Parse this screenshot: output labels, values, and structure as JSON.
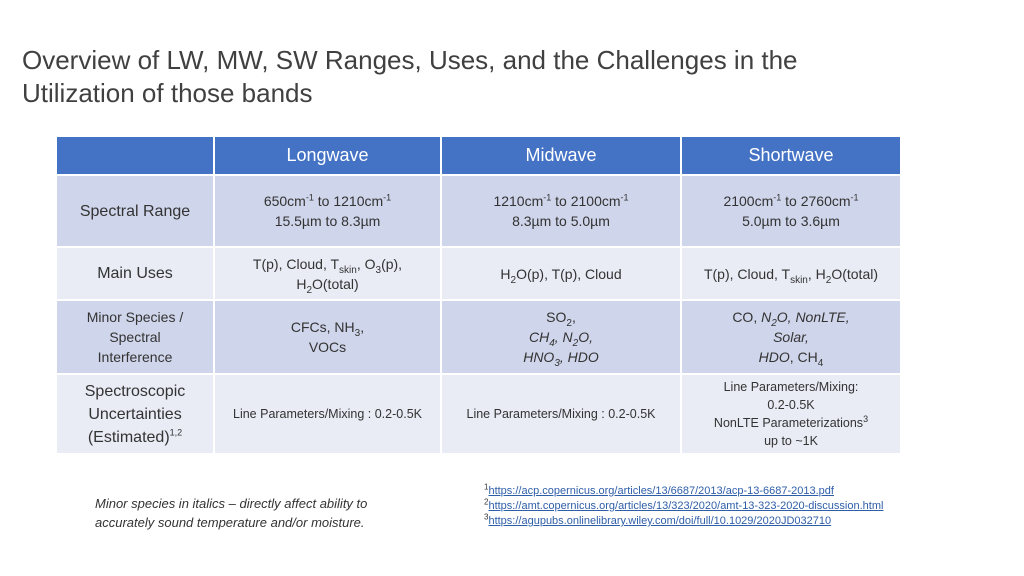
{
  "title": "Overview of LW, MW, SW Ranges, Uses, and the Challenges in the Utilization of those bands",
  "table": {
    "headers": [
      "",
      "Longwave",
      "Midwave",
      "Shortwave"
    ],
    "rows": {
      "spectral_range": {
        "label": "Spectral Range",
        "lw": {
          "a_pre": "650cm",
          "a_sup": "-1",
          "a_mid": " to 1210cm",
          "a_sup2": "-1",
          "b": "15.5µm to 8.3µm"
        },
        "mw": {
          "a_pre": "1210cm",
          "a_sup": "-1",
          "a_mid": " to 2100cm",
          "a_sup2": "-1",
          "b": "8.3µm to 5.0µm"
        },
        "sw": {
          "a_pre": "2100cm",
          "a_sup": "-1",
          "a_mid": " to 2760cm",
          "a_sup2": "-1",
          "b": "5.0µm to 3.6µm"
        }
      },
      "main_uses": {
        "label": "Main Uses",
        "lw": {
          "t1": "T(p), Cloud, T",
          "sub1": "skin",
          "t2": ", O",
          "sub2": "3",
          "t3": "(p),",
          "t4": "H",
          "sub3": "2",
          "t5": "O(total)"
        },
        "mw": {
          "t1": "H",
          "sub1": "2",
          "t2": "O(p), T(p), Cloud"
        },
        "sw": {
          "t1": "T(p), Cloud, T",
          "sub1": "skin",
          "t2": ", H",
          "sub2": "2",
          "t3": "O(total)"
        }
      },
      "minor_species": {
        "label1": "Minor Species /",
        "label2": "Spectral",
        "label3": "Interference",
        "lw": {
          "t1": "CFCs, NH",
          "sub1": "3",
          "t2": ",",
          "t3": "VOCs"
        },
        "mw": {
          "t1": "SO",
          "sub1": "2",
          "t2": ",",
          "t3": "CH",
          "sub2": "4",
          "t4": ", N",
          "sub3": "2",
          "t5": "O,",
          "t6": "HNO",
          "sub4": "3",
          "t7": ", HDO"
        },
        "sw": {
          "t1": "CO, ",
          "t2": "N",
          "sub1": "2",
          "t3": "O, NonLTE,",
          "t4": "Solar,",
          "t5": "HDO",
          "t6": ", CH",
          "sub2": "4"
        }
      },
      "uncertainties": {
        "label1": "Spectroscopic",
        "label2": "Uncertainties",
        "label3": "(Estimated)",
        "label_sup": "1,2",
        "lw": "Line Parameters/Mixing : 0.2-0.5K",
        "mw": "Line Parameters/Mixing : 0.2-0.5K",
        "sw": {
          "l1": "Line Parameters/Mixing:",
          "l2": "0.2-0.5K",
          "l3": "NonLTE Parameterizations",
          "l3_sup": "3",
          "l4": "up to ~1K"
        }
      }
    }
  },
  "note": "Minor species in italics – directly affect ability to accurately sound temperature and/or moisture.",
  "references": [
    {
      "num": "1",
      "url": "https://acp.copernicus.org/articles/13/6687/2013/acp-13-6687-2013.pdf"
    },
    {
      "num": "2",
      "url": "https://amt.copernicus.org/articles/13/323/2020/amt-13-323-2020-discussion.html"
    },
    {
      "num": "3",
      "url": "https://agupubs.onlinelibrary.wiley.com/doi/full/10.1029/2020JD032710"
    }
  ]
}
